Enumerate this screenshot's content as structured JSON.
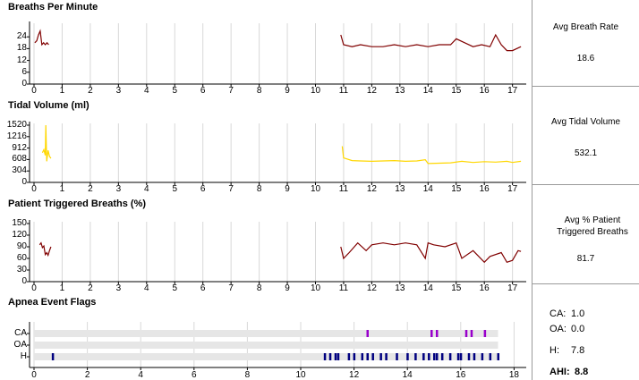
{
  "charts": {
    "x_ticks": [
      "0",
      "1",
      "2",
      "3",
      "4",
      "5",
      "6",
      "7",
      "8",
      "9",
      "10",
      "11",
      "12",
      "13",
      "14",
      "15",
      "16",
      "17"
    ],
    "apnea_x_ticks": [
      "0",
      "2",
      "4",
      "6",
      "8",
      "10",
      "12",
      "14",
      "16",
      "18"
    ],
    "breaths": {
      "title": "Breaths Per Minute",
      "y_ticks": [
        "24",
        "18",
        "12",
        "6",
        "0"
      ]
    },
    "tidal": {
      "title": "Tidal Volume (ml)",
      "y_ticks": [
        "1520",
        "1216",
        "912",
        "608",
        "304",
        "0"
      ]
    },
    "triggered": {
      "title": "Patient Triggered Breaths (%)",
      "y_ticks": [
        "150",
        "120",
        "90",
        "60",
        "30",
        "0"
      ]
    },
    "apnea": {
      "title": "Apnea Event Flags",
      "rows": [
        "CA",
        "OA",
        "H"
      ]
    }
  },
  "chart_data": [
    {
      "type": "line",
      "title": "Breaths Per Minute",
      "xlim": [
        0,
        17.5
      ],
      "ylim": [
        0,
        30
      ],
      "segments": [
        {
          "x": [
            0.03,
            0.1,
            0.16,
            0.22,
            0.28,
            0.34,
            0.4,
            0.46,
            0.52
          ],
          "y": [
            21,
            22,
            25,
            27,
            20,
            21,
            20,
            21,
            20
          ]
        },
        {
          "x": [
            10.9,
            11.0,
            11.3,
            11.6,
            12.0,
            12.4,
            12.8,
            13.2,
            13.6,
            14.0,
            14.4,
            14.8,
            15.0,
            15.3,
            15.6,
            15.9,
            16.2,
            16.4,
            16.6,
            16.8,
            17.0,
            17.3
          ],
          "y": [
            25,
            20,
            19,
            20,
            19,
            19,
            20,
            19,
            20,
            19,
            20,
            20,
            23,
            21,
            19,
            20,
            19,
            25,
            20,
            17,
            17,
            19
          ]
        }
      ]
    },
    {
      "type": "line",
      "title": "Tidal Volume (ml)",
      "xlim": [
        0,
        17.5
      ],
      "ylim": [
        0,
        1520
      ],
      "segments": [
        {
          "x": [
            0.3,
            0.35,
            0.4,
            0.42,
            0.45,
            0.5,
            0.55,
            0.6
          ],
          "y": [
            790,
            870,
            720,
            1520,
            560,
            850,
            690,
            640
          ]
        },
        {
          "x": [
            10.95,
            11.0,
            11.3,
            11.6,
            12.0,
            12.4,
            12.8,
            13.2,
            13.6,
            13.9,
            14.0,
            14.4,
            14.8,
            15.2,
            15.6,
            16.0,
            16.4,
            16.8,
            17.0,
            17.3
          ],
          "y": [
            960,
            650,
            580,
            570,
            560,
            570,
            580,
            560,
            570,
            600,
            500,
            510,
            520,
            560,
            530,
            550,
            540,
            560,
            530,
            560
          ]
        }
      ]
    },
    {
      "type": "line",
      "title": "Patient Triggered Breaths (%)",
      "xlim": [
        0,
        17.5
      ],
      "ylim": [
        0,
        150
      ],
      "segments": [
        {
          "x": [
            0.2,
            0.25,
            0.3,
            0.35,
            0.4,
            0.45,
            0.5,
            0.55,
            0.6
          ],
          "y": [
            95,
            100,
            88,
            92,
            70,
            75,
            68,
            80,
            90
          ]
        },
        {
          "x": [
            10.9,
            11.0,
            11.2,
            11.5,
            11.8,
            12.0,
            12.4,
            12.8,
            13.2,
            13.6,
            13.9,
            14.0,
            14.2,
            14.6,
            15.0,
            15.2,
            15.6,
            16.0,
            16.2,
            16.6,
            16.8,
            17.0,
            17.2,
            17.3
          ],
          "y": [
            90,
            60,
            75,
            100,
            80,
            95,
            100,
            95,
            100,
            95,
            60,
            100,
            95,
            90,
            100,
            60,
            80,
            50,
            65,
            75,
            50,
            55,
            80,
            78
          ]
        }
      ]
    },
    {
      "type": "scatter",
      "title": "Apnea Event Flags",
      "xlim": [
        0,
        18
      ],
      "rows": [
        "CA",
        "OA",
        "H"
      ],
      "colors": {
        "CA": "#9900cc",
        "OA": "#9900cc",
        "H": "#000080"
      },
      "events": {
        "CA": [
          12.5,
          14.9,
          15.1,
          16.2,
          16.4,
          16.9
        ],
        "OA": [],
        "H": [
          0.7,
          10.9,
          11.1,
          11.3,
          11.4,
          11.8,
          12.0,
          12.3,
          12.5,
          12.7,
          13.0,
          13.2,
          13.6,
          14.0,
          14.3,
          14.6,
          14.8,
          15.0,
          15.1,
          15.3,
          15.6,
          15.9,
          16.0,
          16.3,
          16.5,
          16.8,
          17.1,
          17.4
        ]
      }
    }
  ],
  "sidebar": {
    "breath_rate": {
      "label": "Avg Breath Rate",
      "value": "18.6"
    },
    "tidal_volume": {
      "label": "Avg Tidal Volume",
      "value": "532.1"
    },
    "triggered": {
      "label": "Avg % Patient Triggered Breaths",
      "value": "81.7"
    },
    "summary": {
      "ca_label": "CA:",
      "ca_value": "1.0",
      "oa_label": "OA:",
      "oa_value": "0.0",
      "h_label": "H:",
      "h_value": "7.8",
      "ahi_label": "AHI:",
      "ahi_value": "8.8"
    }
  },
  "colors": {
    "breaths_line": "#800000",
    "tidal_line": "#ffd700",
    "triggered_line": "#800000",
    "grid": "#d8d8d8",
    "axis": "#000000",
    "apnea_track": "#e6e6e6",
    "ca_flag": "#9900cc",
    "h_flag": "#000080"
  }
}
